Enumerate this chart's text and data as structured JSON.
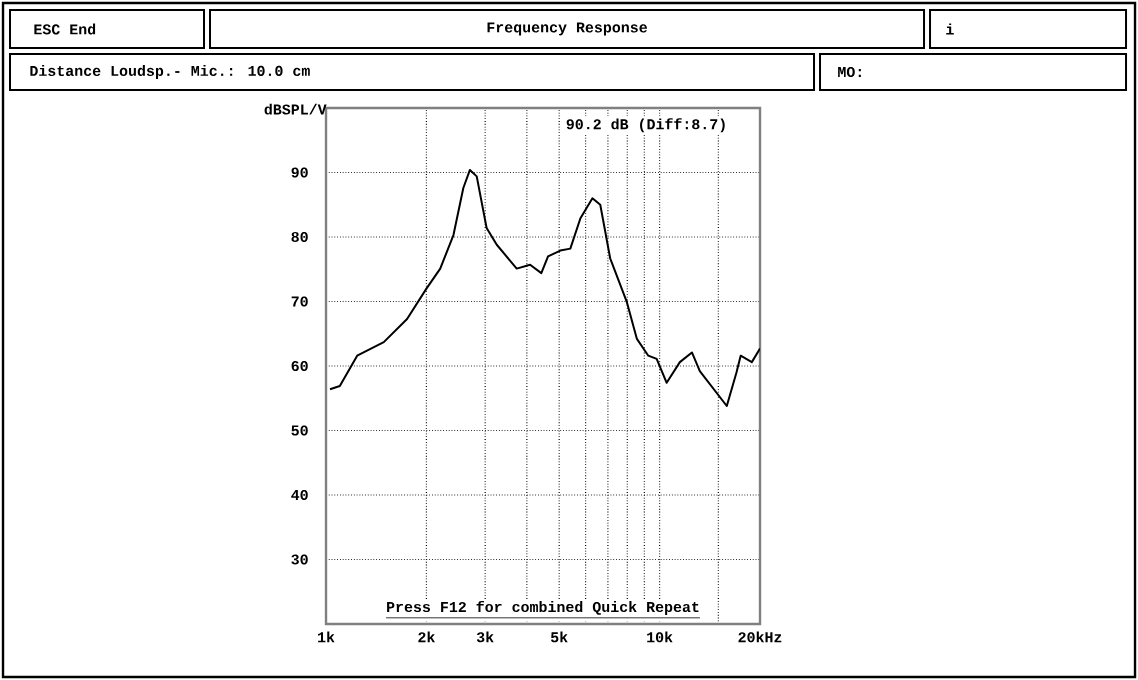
{
  "chart_data": {
    "type": "line",
    "title": "Frequency Response",
    "ylabel": "dBSPL/V",
    "annotations": [
      "ESC End",
      "i",
      "Distance Loudsp.- Mic.: 10.0 cm",
      "MO:",
      "90.2 dB (Diff:8.7)",
      "Press F12 for combined Quick Repeat"
    ],
    "x": [
      1.028,
      1.1,
      1.24,
      1.49,
      1.75,
      2.0,
      2.2,
      2.41,
      2.58,
      2.7,
      2.83,
      3.03,
      3.25,
      3.73,
      4.09,
      4.42,
      4.63,
      5.04,
      5.4,
      5.79,
      6.29,
      6.64,
      7.11,
      7.98,
      8.55,
      9.25,
      9.8,
      10.5,
      11.5,
      12.5,
      13.2,
      15.9,
      17.0,
      17.5,
      18.9,
      20.0
    ],
    "series": [
      {
        "color": "#000000",
        "values": [
          56.4,
          56.9,
          61.6,
          63.7,
          67.3,
          72.0,
          75.1,
          80.3,
          87.6,
          90.4,
          89.4,
          81.4,
          78.8,
          75.1,
          75.7,
          74.4,
          77.0,
          77.9,
          78.2,
          82.9,
          86.0,
          85.0,
          76.7,
          69.9,
          64.2,
          61.6,
          61.1,
          57.4,
          60.6,
          62.1,
          59.2,
          53.8,
          59.0,
          61.6,
          60.6,
          62.7
        ]
      }
    ],
    "log": "x",
    "xlim": [
      1,
      20
    ],
    "ylim": [
      20,
      100
    ],
    "xticks": [
      {
        "value": 1,
        "label": "1k"
      },
      {
        "value": 2,
        "label": "2k"
      },
      {
        "value": 3,
        "label": "3k"
      },
      {
        "value": 4,
        "label": null
      },
      {
        "value": 5,
        "label": "5k"
      },
      {
        "value": 6,
        "label": null
      },
      {
        "value": 7,
        "label": null
      },
      {
        "value": 8,
        "label": null
      },
      {
        "value": 9,
        "label": null
      },
      {
        "value": 10,
        "label": "10k"
      },
      {
        "value": 15,
        "label": null
      },
      {
        "value": 20,
        "label": "20kHz"
      }
    ],
    "yticks": [
      30,
      40,
      50,
      60,
      70,
      80,
      90
    ],
    "grid": true,
    "line_style": "solid",
    "marker": "none"
  }
}
